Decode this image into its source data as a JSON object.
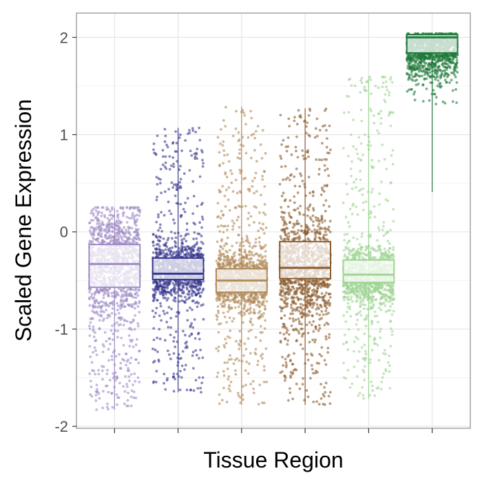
{
  "chart_data": {
    "type": "boxplot-jitter",
    "title": "",
    "xlabel": "Tissue Region",
    "ylabel": "Scaled Gene Expression",
    "ylim": [
      -2.02,
      2.25
    ],
    "yticks": [
      -2,
      -1,
      0,
      1,
      2
    ],
    "x_tick_labels": [
      "",
      "",
      "",
      "",
      "",
      ""
    ],
    "grid": true,
    "legend": "none",
    "series": [
      {
        "name": "",
        "color": "#9E8BC4",
        "median": -0.33,
        "q1": -0.57,
        "q3": -0.13,
        "jitter_min": -1.83,
        "jitter_max": 0.25,
        "center": -0.3
      },
      {
        "name": "",
        "color": "#38398F",
        "median": -0.43,
        "q1": -0.49,
        "q3": -0.27,
        "jitter_min": -1.65,
        "jitter_max": 1.07,
        "center": -0.4
      },
      {
        "name": "",
        "color": "#B08A5A",
        "median": -0.5,
        "q1": -0.62,
        "q3": -0.38,
        "jitter_min": -1.78,
        "jitter_max": 1.29,
        "center": -0.5
      },
      {
        "name": "",
        "color": "#8B5A2B",
        "median": -0.37,
        "q1": -0.48,
        "q3": -0.1,
        "jitter_min": -1.78,
        "jitter_max": 1.27,
        "center": -0.35
      },
      {
        "name": "",
        "color": "#9ED493",
        "median": -0.44,
        "q1": -0.52,
        "q3": -0.29,
        "jitter_min": -1.72,
        "jitter_max": 1.6,
        "center": -0.45
      },
      {
        "name": "",
        "color": "#1F7A3A",
        "median": 2.0,
        "q1": 1.84,
        "q3": 2.03,
        "jitter_min": 0.41,
        "jitter_max": 2.04,
        "center": 1.85
      }
    ]
  }
}
